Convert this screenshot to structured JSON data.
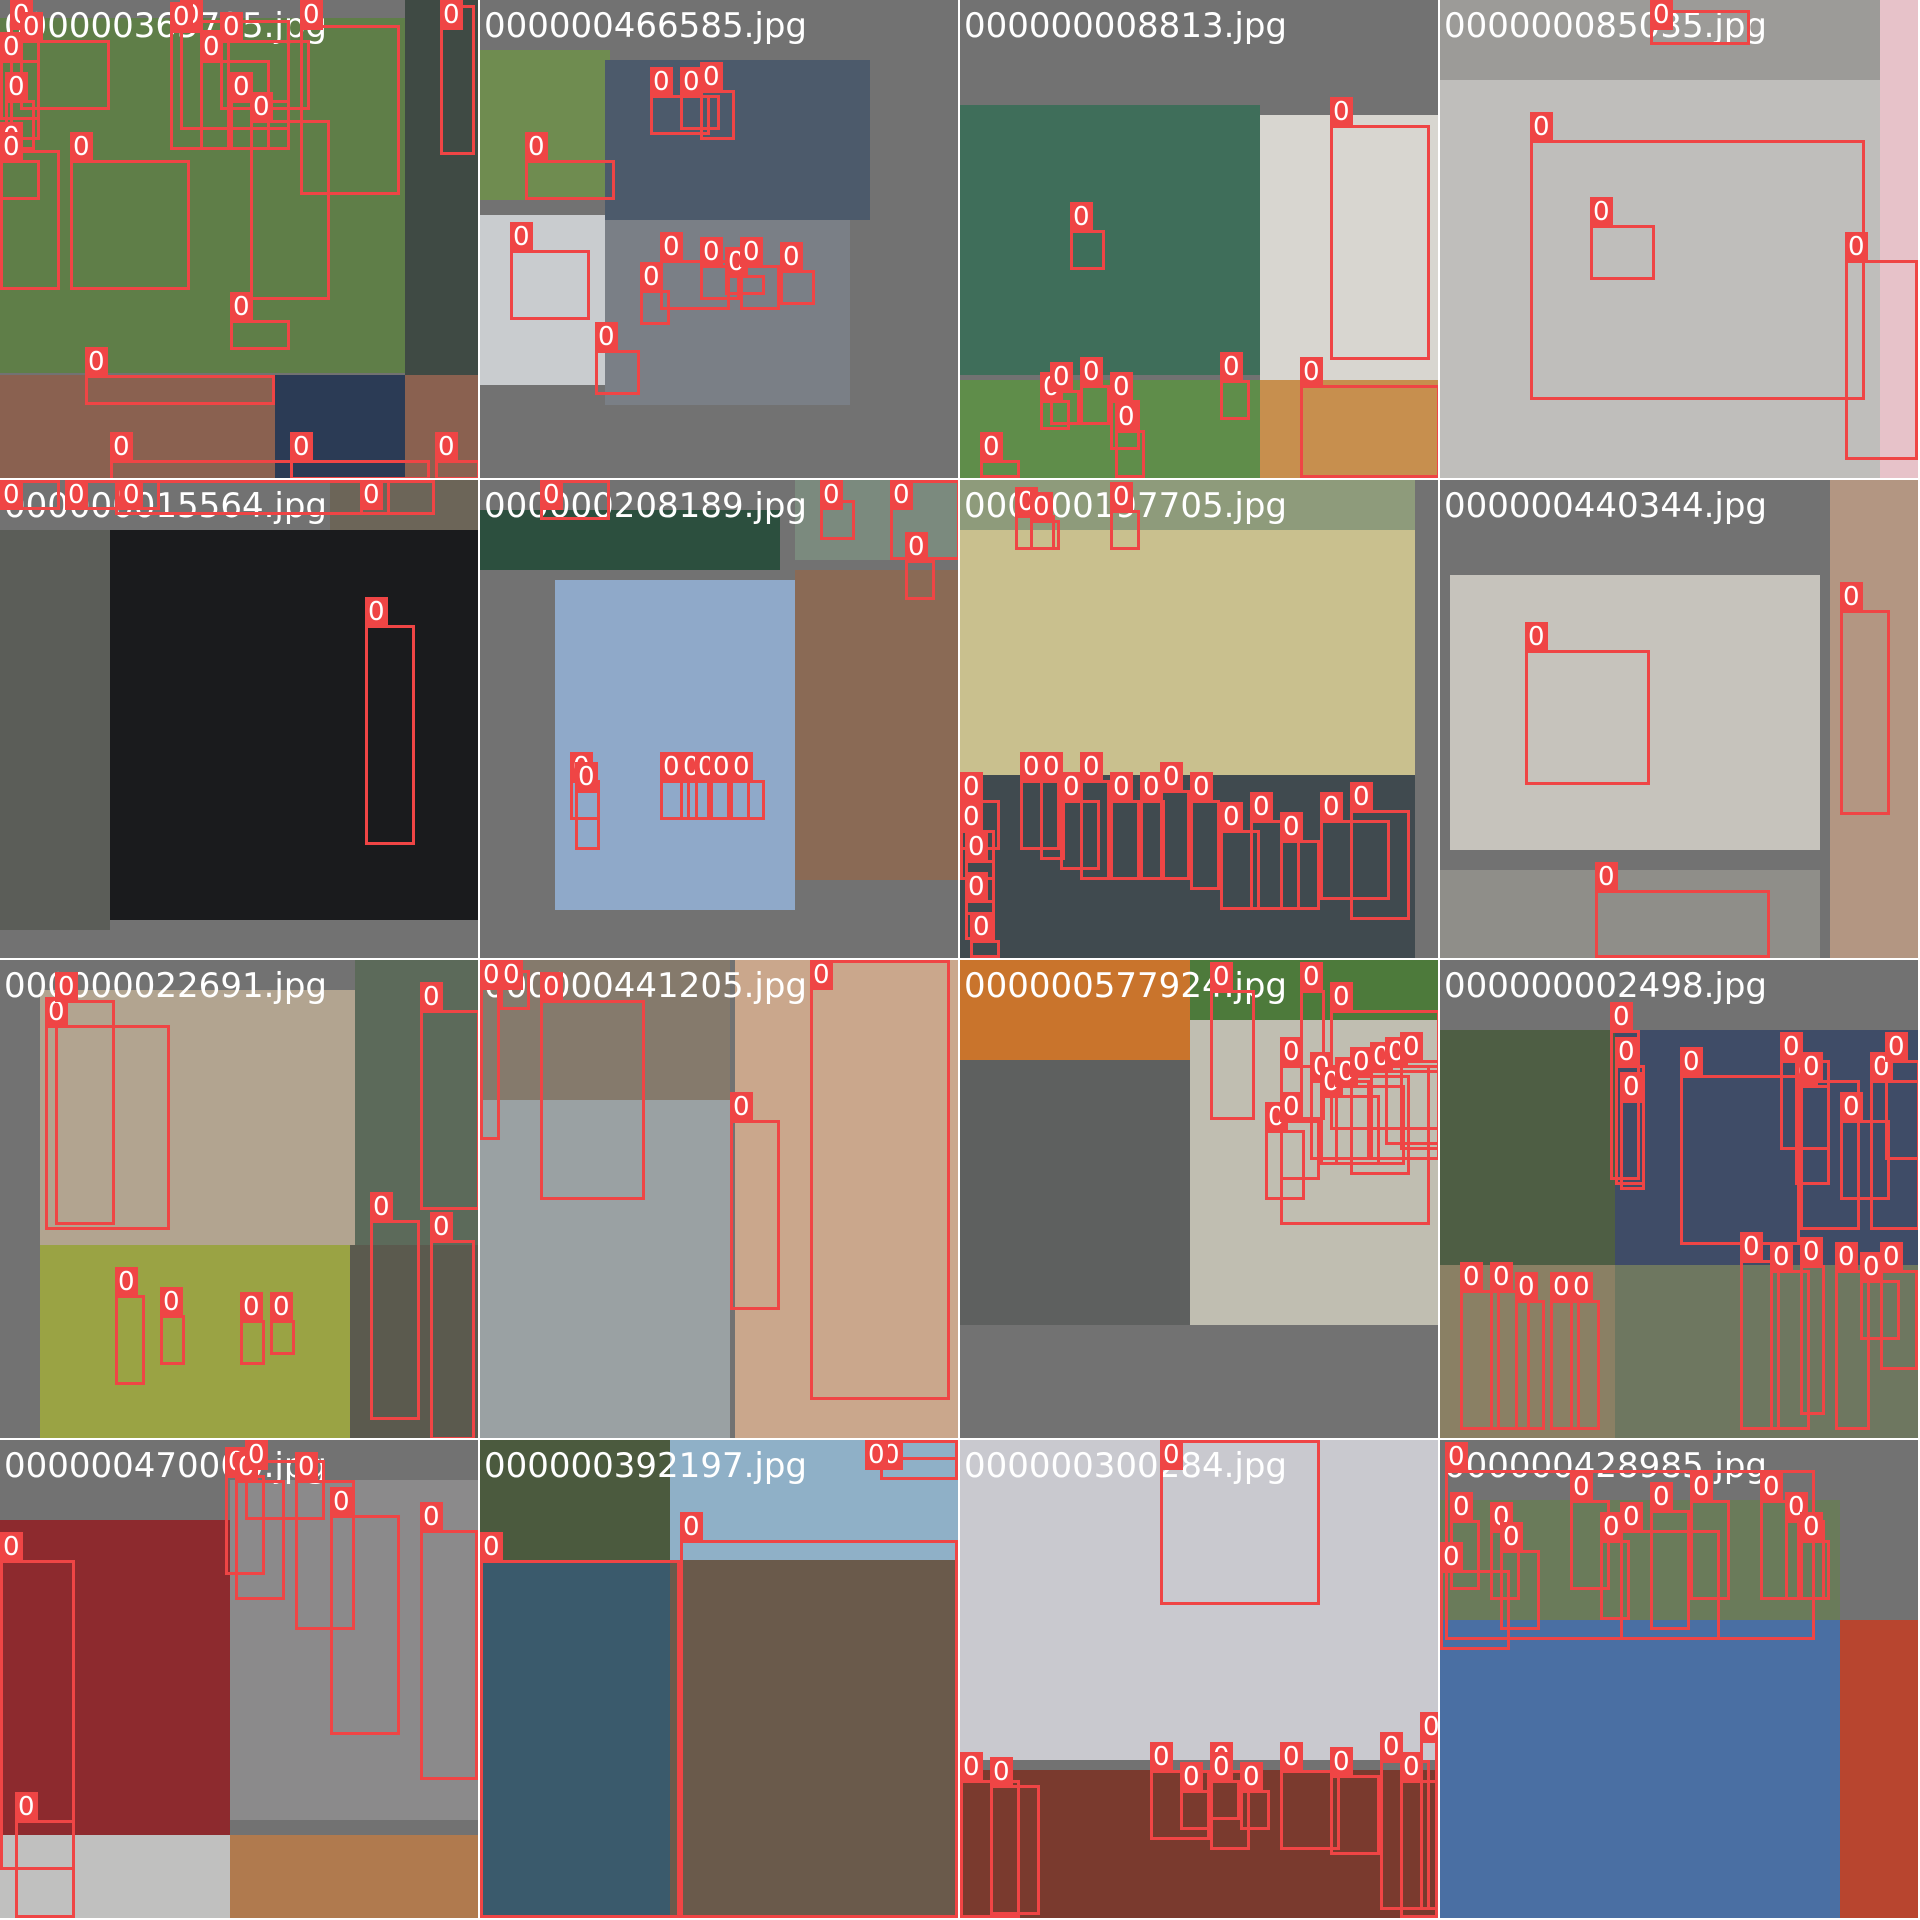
{
  "mosaic": {
    "label_color": "#ef4545",
    "tile_background": "#727272",
    "tiles": [
      {
        "filename": "000000365725.jpg",
        "photos": [
          {
            "c": "#5f7e48"
          },
          {
            "c": "#3f4a44"
          },
          {
            "c": "#8a6150"
          },
          {
            "c": "#2b3b55"
          }
        ],
        "boxes": [
          "0",
          "0",
          "0",
          "0",
          "0",
          "0",
          "0",
          "0",
          "0",
          "0",
          "0",
          "0",
          "0",
          "0",
          "0",
          "0",
          "0",
          "0",
          "0",
          "0"
        ]
      },
      {
        "filename": "000000466585.jpg",
        "photos": [
          {
            "c": "#6f8c50"
          },
          {
            "c": "#4c5a6b"
          },
          {
            "c": "#c9cccf"
          },
          {
            "c": "#7a7f86"
          }
        ],
        "boxes": [
          "0",
          "0",
          "0",
          "0",
          "0",
          "0",
          "0",
          "0",
          "0",
          "0",
          "0",
          "0",
          "0",
          "0",
          "0",
          "0"
        ]
      },
      {
        "filename": "000000008813.jpg",
        "photos": [
          {
            "c": "#3f6e5a"
          },
          {
            "c": "#d8d6d0"
          },
          {
            "c": "#5f8d4a"
          },
          {
            "c": "#c78f4e"
          }
        ],
        "boxes": [
          "0",
          "0",
          "0",
          "0",
          "0",
          "0",
          "0",
          "0",
          "0",
          "0"
        ]
      },
      {
        "filename": "000000085035.jpg",
        "photos": [
          {
            "c": "#9c9b98"
          },
          {
            "c": "#bfbebb"
          },
          {
            "c": "#e7c2c9"
          }
        ],
        "boxes": [
          "0",
          "0",
          "0",
          "0"
        ]
      },
      {
        "filename": "000000015564.jpg",
        "photos": [
          {
            "c": "#5b5d58"
          },
          {
            "c": "#1a1b1d"
          },
          {
            "c": "#6c6558"
          }
        ],
        "boxes": [
          "0",
          "0",
          "0",
          "0",
          "0",
          "0"
        ]
      },
      {
        "filename": "000000208189.jpg",
        "photos": [
          {
            "c": "#2c4f3e"
          },
          {
            "c": "#8fa9c9"
          },
          {
            "c": "#8a6a55"
          },
          {
            "c": "#7b8a7e"
          }
        ],
        "boxes": [
          "0",
          "0",
          "0",
          "0",
          "0",
          "0",
          "0",
          "0",
          "0",
          "0",
          "0"
        ]
      },
      {
        "filename": "000000197705.jpg",
        "photos": [
          {
            "c": "#c9c08e"
          },
          {
            "c": "#404a4f"
          },
          {
            "c": "#8e9b7b"
          }
        ],
        "boxes": [
          "0",
          "0",
          "0",
          "0",
          "0",
          "0",
          "0",
          "0",
          "0",
          "0",
          "0",
          "0",
          "0",
          "0",
          "0",
          "0",
          "0",
          "0",
          "0",
          "0",
          "0"
        ]
      },
      {
        "filename": "000000440344.jpg",
        "photos": [
          {
            "c": "#c6c3bc"
          },
          {
            "c": "#8f8e89"
          },
          {
            "c": "#b39682"
          }
        ],
        "boxes": [
          "0",
          "0",
          "0"
        ]
      },
      {
        "filename": "000000022691.jpg",
        "photos": [
          {
            "c": "#b2a490"
          },
          {
            "c": "#5c6a5a"
          },
          {
            "c": "#9aa344"
          },
          {
            "c": "#5b5a4e"
          }
        ],
        "boxes": [
          "0",
          "0",
          "0",
          "0",
          "0",
          "0",
          "0",
          "0",
          "0"
        ]
      },
      {
        "filename": "000000441205.jpg",
        "photos": [
          {
            "c": "#9aa1a3"
          },
          {
            "c": "#caa78c"
          },
          {
            "c": "#857a6c"
          }
        ],
        "boxes": [
          "0",
          "0",
          "0",
          "0",
          "0"
        ]
      },
      {
        "filename": "000000577924.jpg",
        "photos": [
          {
            "c": "#c9742c"
          },
          {
            "c": "#5e605f"
          },
          {
            "c": "#c0beb1"
          },
          {
            "c": "#4d7a3b"
          }
        ],
        "boxes": [
          "0",
          "0",
          "0",
          "0",
          "0",
          "0",
          "0",
          "0",
          "0",
          "0",
          "0",
          "0",
          "0"
        ]
      },
      {
        "filename": "000000002498.jpg",
        "photos": [
          {
            "c": "#4e5e44"
          },
          {
            "c": "#3f4c67"
          },
          {
            "c": "#8a8064"
          },
          {
            "c": "#6e7760"
          }
        ],
        "boxes": [
          "0",
          "0",
          "0",
          "0",
          "0",
          "0",
          "0",
          "0",
          "0",
          "0",
          "0",
          "0",
          "0",
          "0",
          "0",
          "0",
          "0",
          "0",
          "0",
          "0",
          "0"
        ]
      },
      {
        "filename": "000000470000.jpg",
        "photos": [
          {
            "c": "#8d2a2e"
          },
          {
            "c": "#8b8a8b"
          },
          {
            "c": "#c0c0bf"
          },
          {
            "c": "#b07a4e"
          }
        ],
        "boxes": [
          "0",
          "0",
          "0",
          "0",
          "0",
          "0",
          "0",
          "0"
        ]
      },
      {
        "filename": "000000392197.jpg",
        "photos": [
          {
            "c": "#3a5a6c"
          },
          {
            "c": "#6a5a4b"
          },
          {
            "c": "#4b5a3e"
          },
          {
            "c": "#8fb0c7"
          }
        ],
        "boxes": [
          "0",
          "0",
          "0",
          "0"
        ]
      },
      {
        "filename": "000000300284.jpg",
        "photos": [
          {
            "c": "#c9c9cf"
          },
          {
            "c": "#7a3a2e"
          }
        ],
        "boxes": [
          "0",
          "0",
          "0",
          "0",
          "0",
          "0",
          "0",
          "0",
          "0",
          "0",
          "0",
          "0",
          "0"
        ]
      },
      {
        "filename": "000000428985.jpg",
        "photos": [
          {
            "c": "#6a7b5a"
          },
          {
            "c": "#4a6fa3"
          },
          {
            "c": "#b8452f"
          }
        ],
        "boxes": [
          "0",
          "0",
          "0",
          "0",
          "0",
          "0",
          "0",
          "0",
          "0",
          "0",
          "0",
          "0",
          "0"
        ]
      }
    ]
  }
}
